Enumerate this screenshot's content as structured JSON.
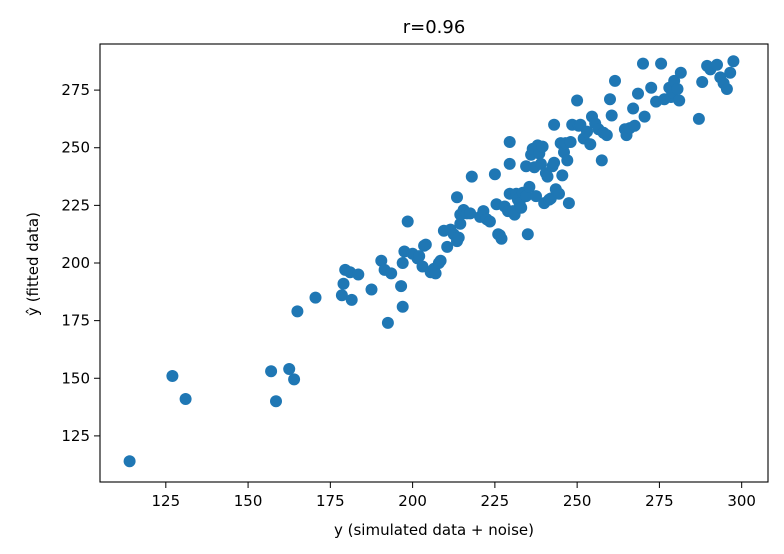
{
  "chart_data": {
    "type": "scatter",
    "title": "r=0.96",
    "xlabel": "y (simulated data + noise)",
    "ylabel": "ŷ (fitted data)",
    "xlim": [
      105,
      308
    ],
    "ylim": [
      105,
      295
    ],
    "xticks": [
      125,
      150,
      175,
      200,
      225,
      250,
      275,
      300
    ],
    "yticks": [
      125,
      150,
      175,
      200,
      225,
      250,
      275
    ],
    "grid": false,
    "marker_color": "#1f77b4",
    "series": [
      {
        "points": [
          [
            114,
            114
          ],
          [
            127,
            151
          ],
          [
            131,
            141
          ],
          [
            157,
            153
          ],
          [
            158.5,
            140
          ],
          [
            162.5,
            154
          ],
          [
            164,
            149.5
          ],
          [
            165,
            179
          ],
          [
            170.5,
            185
          ],
          [
            178.5,
            186
          ],
          [
            179,
            191
          ],
          [
            179.5,
            197
          ],
          [
            181,
            196
          ],
          [
            181.5,
            184
          ],
          [
            183.5,
            195
          ],
          [
            187.5,
            188.5
          ],
          [
            190.5,
            201
          ],
          [
            191.5,
            197
          ],
          [
            192.5,
            174
          ],
          [
            193.5,
            195.5
          ],
          [
            196.5,
            190
          ],
          [
            197,
            181
          ],
          [
            197,
            200
          ],
          [
            197.5,
            205
          ],
          [
            198.5,
            218
          ],
          [
            200,
            204
          ],
          [
            201.5,
            202
          ],
          [
            202,
            203
          ],
          [
            203,
            198.5
          ],
          [
            203.5,
            207.5
          ],
          [
            204,
            208
          ],
          [
            205.5,
            196
          ],
          [
            206.5,
            197.5
          ],
          [
            207,
            195.5
          ],
          [
            208,
            200
          ],
          [
            208.5,
            201
          ],
          [
            209.5,
            214
          ],
          [
            210.5,
            207
          ],
          [
            211.5,
            214.5
          ],
          [
            212.5,
            212.5
          ],
          [
            213.5,
            228.5
          ],
          [
            213.5,
            209.5
          ],
          [
            214,
            211
          ],
          [
            214.5,
            217
          ],
          [
            214.5,
            221
          ],
          [
            215.5,
            223
          ],
          [
            216.5,
            221.5
          ],
          [
            217.5,
            221.5
          ],
          [
            218,
            237.5
          ],
          [
            220.5,
            220
          ],
          [
            221.5,
            222.5
          ],
          [
            222.5,
            219
          ],
          [
            223.5,
            218
          ],
          [
            225,
            238.5
          ],
          [
            225.5,
            225.5
          ],
          [
            226,
            212.5
          ],
          [
            226.5,
            212
          ],
          [
            227,
            210.5
          ],
          [
            228,
            224.5
          ],
          [
            229,
            222.5
          ],
          [
            229.5,
            230
          ],
          [
            229.5,
            252.5
          ],
          [
            229.5,
            243
          ],
          [
            230.5,
            222.5
          ],
          [
            231,
            221
          ],
          [
            231.5,
            230
          ],
          [
            232,
            227.5
          ],
          [
            232.5,
            226
          ],
          [
            233,
            224
          ],
          [
            233.5,
            230.5
          ],
          [
            234.5,
            229
          ],
          [
            234.5,
            242
          ],
          [
            235,
            212.5
          ],
          [
            235.5,
            233
          ],
          [
            236,
            247
          ],
          [
            236.5,
            249.5
          ],
          [
            237,
            241.5
          ],
          [
            237.5,
            229
          ],
          [
            238,
            251
          ],
          [
            238.5,
            247.5
          ],
          [
            239,
            243
          ],
          [
            239.5,
            250.5
          ],
          [
            240,
            226
          ],
          [
            240.5,
            239
          ],
          [
            241,
            237.5
          ],
          [
            241.5,
            227.5
          ],
          [
            242,
            228
          ],
          [
            242.5,
            242
          ],
          [
            243,
            243.5
          ],
          [
            243,
            260
          ],
          [
            243.5,
            232
          ],
          [
            244.5,
            230
          ],
          [
            245,
            252
          ],
          [
            245.5,
            238
          ],
          [
            246,
            248
          ],
          [
            246.5,
            252
          ],
          [
            247,
            244.5
          ],
          [
            247.5,
            226
          ],
          [
            248,
            252.5
          ],
          [
            248.5,
            260
          ],
          [
            250,
            270.5
          ],
          [
            250.5,
            259.5
          ],
          [
            251,
            260
          ],
          [
            252,
            254
          ],
          [
            253,
            257
          ],
          [
            254,
            251.5
          ],
          [
            254.5,
            263.5
          ],
          [
            255.5,
            260.5
          ],
          [
            256.5,
            258
          ],
          [
            257.5,
            244.5
          ],
          [
            258,
            256.5
          ],
          [
            259,
            255.5
          ],
          [
            260,
            271
          ],
          [
            260.5,
            264
          ],
          [
            261.5,
            279
          ],
          [
            264.5,
            258
          ],
          [
            265,
            255.5
          ],
          [
            266,
            258.5
          ],
          [
            267,
            267
          ],
          [
            267.5,
            259.5
          ],
          [
            268.5,
            273.5
          ],
          [
            270,
            286.5
          ],
          [
            270.5,
            263.5
          ],
          [
            272.5,
            276
          ],
          [
            274,
            270
          ],
          [
            275.5,
            286.5
          ],
          [
            276.5,
            271
          ],
          [
            278,
            276
          ],
          [
            278.5,
            272
          ],
          [
            279,
            274
          ],
          [
            279.5,
            279
          ],
          [
            280.5,
            275.5
          ],
          [
            281,
            270.5
          ],
          [
            281.5,
            282.5
          ],
          [
            287,
            262.5
          ],
          [
            288,
            278.5
          ],
          [
            289.5,
            285.5
          ],
          [
            290.5,
            284
          ],
          [
            292.5,
            286
          ],
          [
            293.5,
            280.5
          ],
          [
            294.5,
            278
          ],
          [
            295.5,
            275.5
          ],
          [
            296.5,
            282.5
          ],
          [
            297.5,
            287.5
          ]
        ]
      }
    ]
  }
}
